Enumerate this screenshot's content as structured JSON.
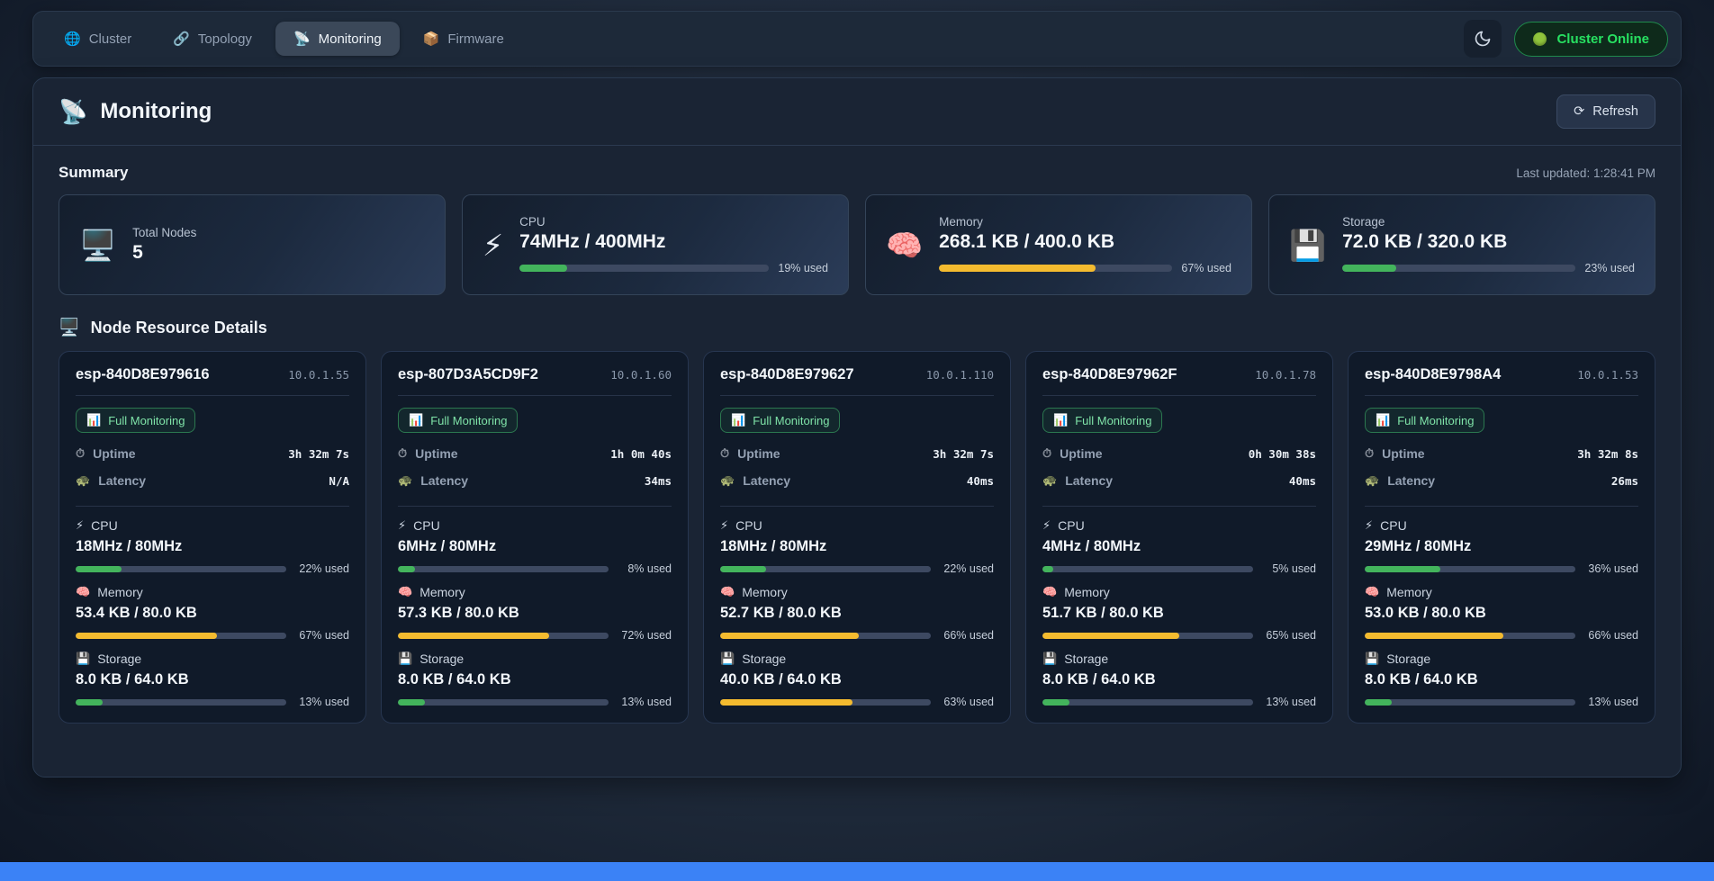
{
  "nav": {
    "tabs": [
      {
        "label": "Cluster",
        "icon": "🌐"
      },
      {
        "label": "Topology",
        "icon": "🔗"
      },
      {
        "label": "Monitoring",
        "icon": "📡"
      },
      {
        "label": "Firmware",
        "icon": "📦"
      }
    ],
    "active_tab": "Monitoring",
    "status": {
      "label": "Cluster Online",
      "color": "#27e061"
    }
  },
  "page": {
    "title": "Monitoring",
    "title_icon": "📡",
    "refresh_label": "Refresh",
    "refresh_icon": "⟳"
  },
  "summary": {
    "heading": "Summary",
    "last_updated": "Last updated: 1:28:41 PM",
    "cards": [
      {
        "icon": "🖥️",
        "label": "Total Nodes",
        "value": "5"
      },
      {
        "icon": "⚡",
        "label": "CPU",
        "value": "74MHz / 400MHz",
        "pct": 19,
        "pct_label": "19% used",
        "color": "green"
      },
      {
        "icon": "🧠",
        "label": "Memory",
        "value": "268.1 KB / 400.0 KB",
        "pct": 67,
        "pct_label": "67% used",
        "color": "amber"
      },
      {
        "icon": "💾",
        "label": "Storage",
        "value": "72.0 KB / 320.0 KB",
        "pct": 23,
        "pct_label": "23% used",
        "color": "green"
      }
    ]
  },
  "nodes_section": {
    "heading": "Node Resource Details",
    "icon": "🖥️"
  },
  "node_labels": {
    "badge": "Full Monitoring",
    "badge_icon": "📊",
    "uptime": "Uptime",
    "uptime_icon": "⏱",
    "latency": "Latency",
    "latency_icon": "🐢",
    "cpu": "CPU",
    "cpu_icon": "⚡",
    "memory": "Memory",
    "memory_icon": "🧠",
    "storage": "Storage",
    "storage_icon": "💾"
  },
  "nodes": [
    {
      "name": "esp-840D8E979616",
      "ip": "10.0.1.55",
      "uptime": "3h 32m 7s",
      "latency": "N/A",
      "cpu": {
        "value": "18MHz / 80MHz",
        "pct": 22,
        "pct_label": "22% used",
        "color": "green"
      },
      "memory": {
        "value": "53.4 KB / 80.0 KB",
        "pct": 67,
        "pct_label": "67% used",
        "color": "amber"
      },
      "storage": {
        "value": "8.0 KB / 64.0 KB",
        "pct": 13,
        "pct_label": "13% used",
        "color": "green"
      }
    },
    {
      "name": "esp-807D3A5CD9F2",
      "ip": "10.0.1.60",
      "uptime": "1h 0m 40s",
      "latency": "34ms",
      "cpu": {
        "value": "6MHz / 80MHz",
        "pct": 8,
        "pct_label": "8% used",
        "color": "green"
      },
      "memory": {
        "value": "57.3 KB / 80.0 KB",
        "pct": 72,
        "pct_label": "72% used",
        "color": "amber"
      },
      "storage": {
        "value": "8.0 KB / 64.0 KB",
        "pct": 13,
        "pct_label": "13% used",
        "color": "green"
      }
    },
    {
      "name": "esp-840D8E979627",
      "ip": "10.0.1.110",
      "uptime": "3h 32m 7s",
      "latency": "40ms",
      "cpu": {
        "value": "18MHz / 80MHz",
        "pct": 22,
        "pct_label": "22% used",
        "color": "green"
      },
      "memory": {
        "value": "52.7 KB / 80.0 KB",
        "pct": 66,
        "pct_label": "66% used",
        "color": "amber"
      },
      "storage": {
        "value": "40.0 KB / 64.0 KB",
        "pct": 63,
        "pct_label": "63% used",
        "color": "amber"
      }
    },
    {
      "name": "esp-840D8E97962F",
      "ip": "10.0.1.78",
      "uptime": "0h 30m 38s",
      "latency": "40ms",
      "cpu": {
        "value": "4MHz / 80MHz",
        "pct": 5,
        "pct_label": "5% used",
        "color": "green"
      },
      "memory": {
        "value": "51.7 KB / 80.0 KB",
        "pct": 65,
        "pct_label": "65% used",
        "color": "amber"
      },
      "storage": {
        "value": "8.0 KB / 64.0 KB",
        "pct": 13,
        "pct_label": "13% used",
        "color": "green"
      }
    },
    {
      "name": "esp-840D8E9798A4",
      "ip": "10.0.1.53",
      "uptime": "3h 32m 8s",
      "latency": "26ms",
      "cpu": {
        "value": "29MHz / 80MHz",
        "pct": 36,
        "pct_label": "36% used",
        "color": "green"
      },
      "memory": {
        "value": "53.0 KB / 80.0 KB",
        "pct": 66,
        "pct_label": "66% used",
        "color": "amber"
      },
      "storage": {
        "value": "8.0 KB / 64.0 KB",
        "pct": 13,
        "pct_label": "13% used",
        "color": "green"
      }
    }
  ]
}
